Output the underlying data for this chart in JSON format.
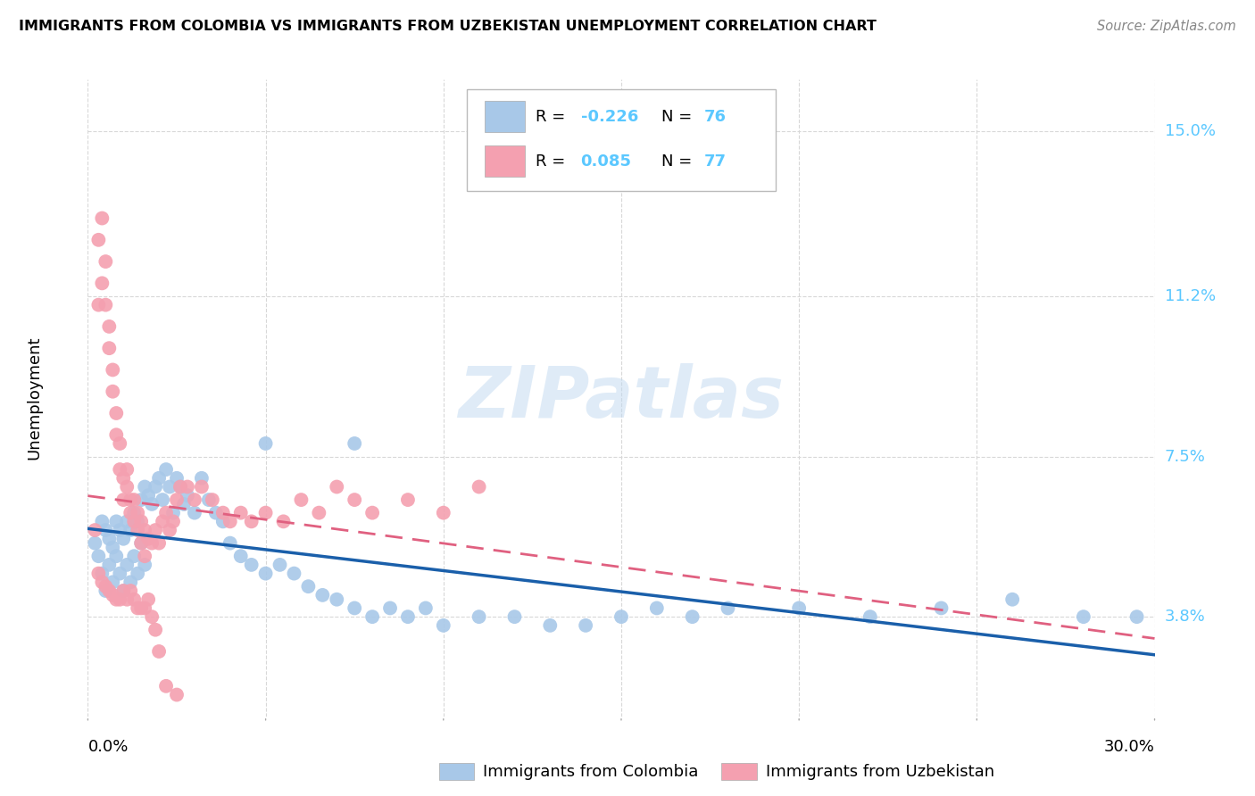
{
  "title": "IMMIGRANTS FROM COLOMBIA VS IMMIGRANTS FROM UZBEKISTAN UNEMPLOYMENT CORRELATION CHART",
  "source": "Source: ZipAtlas.com",
  "ylabel": "Unemployment",
  "ytick_labels": [
    "3.8%",
    "7.5%",
    "11.2%",
    "15.0%"
  ],
  "ytick_values": [
    0.038,
    0.075,
    0.112,
    0.15
  ],
  "xmin": 0.0,
  "xmax": 0.3,
  "ymin": 0.015,
  "ymax": 0.162,
  "legend_colombia_r": "-0.226",
  "legend_colombia_n": "76",
  "legend_uzbekistan_r": "0.085",
  "legend_uzbekistan_n": "77",
  "colombia_color": "#a8c8e8",
  "uzbekistan_color": "#f4a0b0",
  "colombia_line_color": "#1a5faa",
  "uzbekistan_line_color": "#e06080",
  "watermark": "ZIPatlas",
  "colombia_points_x": [
    0.002,
    0.003,
    0.004,
    0.004,
    0.005,
    0.005,
    0.006,
    0.006,
    0.007,
    0.007,
    0.008,
    0.008,
    0.009,
    0.009,
    0.01,
    0.01,
    0.011,
    0.011,
    0.012,
    0.012,
    0.013,
    0.013,
    0.014,
    0.014,
    0.015,
    0.015,
    0.016,
    0.016,
    0.017,
    0.018,
    0.019,
    0.02,
    0.021,
    0.022,
    0.023,
    0.024,
    0.025,
    0.026,
    0.027,
    0.028,
    0.03,
    0.032,
    0.034,
    0.036,
    0.038,
    0.04,
    0.043,
    0.046,
    0.05,
    0.054,
    0.058,
    0.062,
    0.066,
    0.07,
    0.075,
    0.08,
    0.085,
    0.09,
    0.095,
    0.1,
    0.11,
    0.12,
    0.13,
    0.14,
    0.15,
    0.16,
    0.17,
    0.18,
    0.2,
    0.22,
    0.24,
    0.26,
    0.28,
    0.05,
    0.075,
    0.295
  ],
  "colombia_points_y": [
    0.055,
    0.052,
    0.06,
    0.048,
    0.058,
    0.044,
    0.056,
    0.05,
    0.054,
    0.046,
    0.06,
    0.052,
    0.058,
    0.048,
    0.056,
    0.044,
    0.06,
    0.05,
    0.058,
    0.046,
    0.062,
    0.052,
    0.06,
    0.048,
    0.065,
    0.055,
    0.068,
    0.05,
    0.066,
    0.064,
    0.068,
    0.07,
    0.065,
    0.072,
    0.068,
    0.062,
    0.07,
    0.068,
    0.064,
    0.066,
    0.062,
    0.07,
    0.065,
    0.062,
    0.06,
    0.055,
    0.052,
    0.05,
    0.048,
    0.05,
    0.048,
    0.045,
    0.043,
    0.042,
    0.04,
    0.038,
    0.04,
    0.038,
    0.04,
    0.036,
    0.038,
    0.038,
    0.036,
    0.036,
    0.038,
    0.04,
    0.038,
    0.04,
    0.04,
    0.038,
    0.04,
    0.042,
    0.038,
    0.078,
    0.078,
    0.038
  ],
  "uzbekistan_points_x": [
    0.002,
    0.003,
    0.003,
    0.004,
    0.004,
    0.005,
    0.005,
    0.006,
    0.006,
    0.007,
    0.007,
    0.008,
    0.008,
    0.009,
    0.009,
    0.01,
    0.01,
    0.011,
    0.011,
    0.012,
    0.012,
    0.013,
    0.013,
    0.014,
    0.014,
    0.015,
    0.015,
    0.016,
    0.016,
    0.017,
    0.018,
    0.019,
    0.02,
    0.021,
    0.022,
    0.023,
    0.024,
    0.025,
    0.026,
    0.028,
    0.03,
    0.032,
    0.035,
    0.038,
    0.04,
    0.043,
    0.046,
    0.05,
    0.055,
    0.06,
    0.065,
    0.07,
    0.075,
    0.08,
    0.09,
    0.1,
    0.11,
    0.003,
    0.004,
    0.005,
    0.006,
    0.007,
    0.008,
    0.009,
    0.01,
    0.011,
    0.012,
    0.013,
    0.014,
    0.015,
    0.016,
    0.017,
    0.018,
    0.019,
    0.02,
    0.022,
    0.025
  ],
  "uzbekistan_points_y": [
    0.058,
    0.11,
    0.125,
    0.115,
    0.13,
    0.12,
    0.11,
    0.105,
    0.1,
    0.09,
    0.095,
    0.085,
    0.08,
    0.078,
    0.072,
    0.07,
    0.065,
    0.072,
    0.068,
    0.065,
    0.062,
    0.065,
    0.06,
    0.062,
    0.058,
    0.06,
    0.055,
    0.058,
    0.052,
    0.056,
    0.055,
    0.058,
    0.055,
    0.06,
    0.062,
    0.058,
    0.06,
    0.065,
    0.068,
    0.068,
    0.065,
    0.068,
    0.065,
    0.062,
    0.06,
    0.062,
    0.06,
    0.062,
    0.06,
    0.065,
    0.062,
    0.068,
    0.065,
    0.062,
    0.065,
    0.062,
    0.068,
    0.048,
    0.046,
    0.045,
    0.044,
    0.043,
    0.042,
    0.042,
    0.044,
    0.042,
    0.044,
    0.042,
    0.04,
    0.04,
    0.04,
    0.042,
    0.038,
    0.035,
    0.03,
    0.022,
    0.02
  ],
  "grid_color": "#d8d8d8",
  "background_color": "#ffffff",
  "tick_color": "#aaaaaa"
}
